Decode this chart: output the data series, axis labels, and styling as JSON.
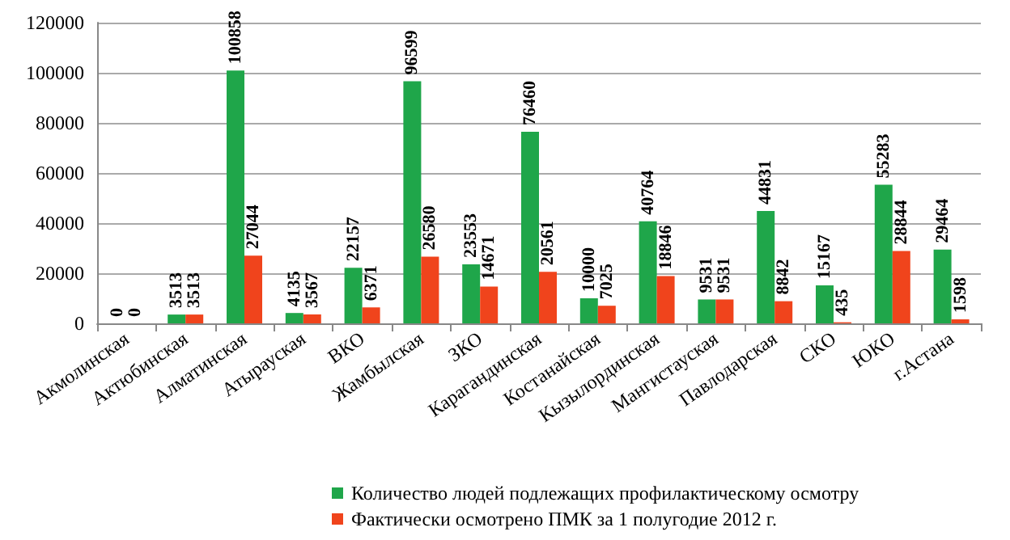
{
  "chart_data": {
    "type": "bar",
    "categories": [
      "Акмолинская",
      "Актюбинская",
      "Алматинская",
      "Атырауская",
      "ВКО",
      "Жамбылская",
      "ЗКО",
      "Карагандинская",
      "Костанайская",
      "Кызылординская",
      "Мангистауская",
      "Павлодарская",
      "СКО",
      "ЮКО",
      "г.Астана"
    ],
    "series": [
      {
        "name": "Количество людей подлежащих профилактическому осмотру",
        "color": "#1fa64a",
        "values": [
          0,
          3513,
          100858,
          4135,
          22157,
          96599,
          23553,
          76460,
          10000,
          40764,
          9531,
          44831,
          15167,
          55283,
          29464
        ]
      },
      {
        "name": "Фактически осмотрено ПМК за 1 полугодие 2012 г.",
        "color": "#f0441c",
        "values": [
          0,
          3513,
          27044,
          3567,
          6371,
          26580,
          14671,
          20561,
          7025,
          18846,
          9531,
          8842,
          435,
          28844,
          1598
        ]
      }
    ],
    "ylim": [
      0,
      120000
    ],
    "yticks": [
      0,
      20000,
      40000,
      60000,
      80000,
      100000,
      120000
    ],
    "grid": "y",
    "legend": "bottom",
    "data_labels": true
  }
}
